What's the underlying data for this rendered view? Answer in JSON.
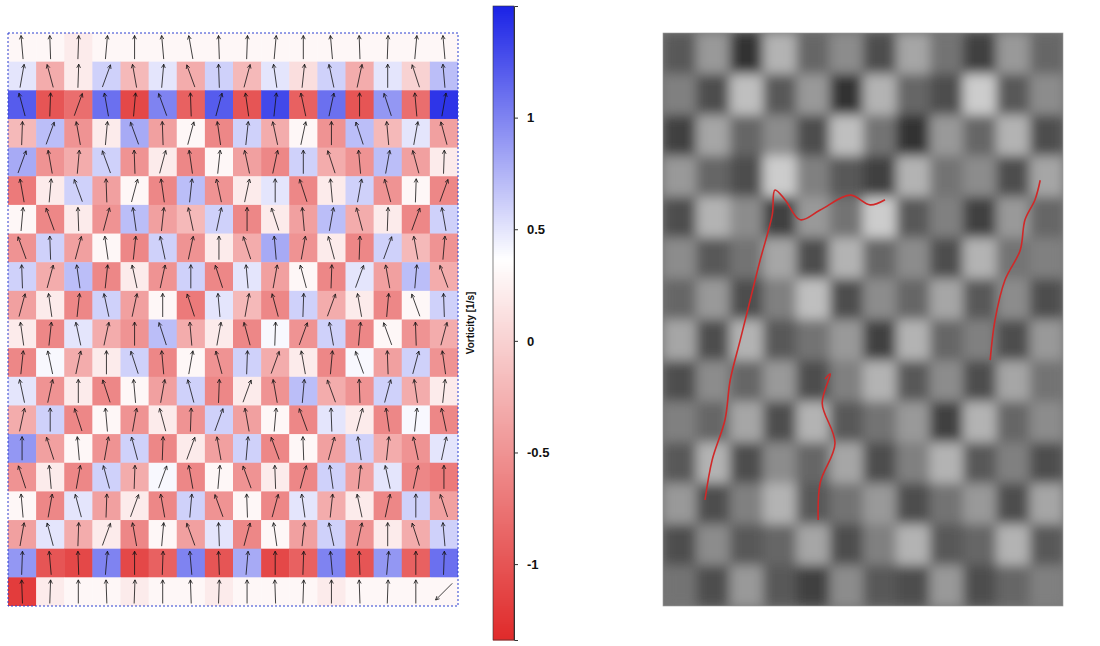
{
  "chart_data": [
    {
      "type": "heatmap",
      "tick_labels": false,
      "grid": false,
      "cells": [
        [
          0.3,
          0.3,
          0.2,
          0.3,
          0.3,
          0.3,
          0.3,
          0.3,
          0.3,
          0.3,
          0.3,
          0.3,
          0.3,
          0.3,
          0.3,
          0.3
        ],
        [
          0.5,
          -0.3,
          0.2,
          0.6,
          -0.2,
          0.5,
          -0.3,
          0.6,
          -0.2,
          0.5,
          0.1,
          0.6,
          -0.3,
          0.5,
          0.0,
          0.7
        ],
        [
          1.2,
          -1.0,
          -0.8,
          1.1,
          -1.1,
          1.0,
          -0.9,
          1.2,
          -1.0,
          1.3,
          -0.9,
          1.1,
          -1.0,
          0.9,
          -0.8,
          1.4
        ],
        [
          -0.2,
          0.7,
          -0.5,
          0.2,
          0.8,
          -0.4,
          0.3,
          -0.6,
          0.6,
          -0.3,
          0.3,
          -0.5,
          0.7,
          -0.2,
          0.5,
          -0.4
        ],
        [
          0.8,
          -0.5,
          -0.3,
          0.6,
          -0.5,
          0.2,
          -0.6,
          0.3,
          -0.4,
          -0.6,
          0.6,
          -0.3,
          -0.5,
          0.7,
          -0.4,
          0.2
        ],
        [
          -0.7,
          0.2,
          0.6,
          -0.4,
          0.3,
          -0.6,
          0.7,
          -0.5,
          0.2,
          0.5,
          -0.6,
          0.2,
          0.6,
          -0.5,
          0.3,
          -0.6
        ],
        [
          0.3,
          -0.6,
          0.2,
          -0.5,
          0.7,
          -0.4,
          -0.2,
          0.6,
          -0.6,
          0.2,
          -0.4,
          0.7,
          -0.3,
          0.2,
          -0.6,
          0.6
        ],
        [
          -0.5,
          0.6,
          -0.4,
          0.3,
          -0.6,
          0.6,
          -0.5,
          0.2,
          -0.3,
          0.8,
          -0.5,
          0.2,
          -0.6,
          0.6,
          -0.2,
          -0.5
        ],
        [
          0.6,
          -0.3,
          0.7,
          -0.6,
          0.2,
          -0.5,
          0.6,
          -0.6,
          0.5,
          -0.4,
          0.3,
          -0.6,
          0.5,
          -0.4,
          0.7,
          -0.3
        ],
        [
          -0.4,
          0.2,
          -0.6,
          0.6,
          -0.4,
          0.3,
          -0.7,
          0.5,
          -0.2,
          -0.6,
          0.6,
          -0.3,
          0.2,
          -0.6,
          0.3,
          0.6
        ],
        [
          0.2,
          -0.6,
          0.5,
          -0.3,
          -0.5,
          0.7,
          -0.3,
          0.2,
          -0.6,
          0.4,
          -0.5,
          0.6,
          -0.6,
          0.3,
          -0.5,
          -0.3
        ],
        [
          -0.6,
          0.4,
          -0.3,
          0.2,
          0.6,
          -0.6,
          0.3,
          -0.5,
          0.6,
          -0.3,
          0.2,
          -0.6,
          0.4,
          -0.4,
          0.6,
          -0.5
        ],
        [
          0.5,
          -0.5,
          0.2,
          -0.6,
          0.3,
          -0.4,
          0.6,
          -0.6,
          0.2,
          -0.5,
          0.7,
          -0.3,
          -0.5,
          0.6,
          -0.3,
          0.2
        ],
        [
          -0.3,
          0.6,
          -0.6,
          0.3,
          -0.5,
          0.2,
          -0.5,
          0.6,
          -0.4,
          0.3,
          -0.6,
          0.5,
          0.2,
          -0.6,
          0.4,
          -0.6
        ],
        [
          0.9,
          -0.4,
          0.3,
          -0.5,
          0.6,
          -0.6,
          0.2,
          -0.4,
          0.6,
          -0.6,
          0.3,
          -0.4,
          0.6,
          -0.3,
          -0.5,
          0.5
        ],
        [
          -0.5,
          0.2,
          -0.6,
          0.6,
          -0.3,
          0.4,
          -0.6,
          0.3,
          -0.5,
          0.2,
          -0.6,
          0.6,
          -0.4,
          0.5,
          -0.6,
          -0.7
        ],
        [
          0.3,
          -0.6,
          0.5,
          -0.4,
          0.2,
          -0.6,
          0.6,
          -0.5,
          0.3,
          -0.6,
          0.5,
          -0.3,
          0.2,
          -0.6,
          0.6,
          -0.4
        ],
        [
          -0.4,
          0.5,
          -0.3,
          0.2,
          -0.6,
          0.3,
          -0.4,
          0.5,
          -0.6,
          0.3,
          -0.4,
          0.6,
          -0.5,
          0.2,
          -0.3,
          0.6
        ],
        [
          0.9,
          -1.0,
          -1.1,
          1.0,
          -1.1,
          -0.9,
          1.0,
          -1.0,
          0.8,
          -1.1,
          -0.9,
          1.0,
          -1.0,
          0.9,
          -0.9,
          1.1
        ],
        [
          -1.2,
          0.2,
          0.3,
          0.3,
          0.2,
          0.3,
          0.3,
          0.2,
          0.3,
          0.3,
          0.3,
          0.2,
          0.3,
          0.3,
          0.3,
          0.3
        ]
      ],
      "velocity_angles": [
        [
          95,
          92,
          88,
          85,
          90,
          95,
          100,
          92,
          88,
          85,
          90,
          95,
          92,
          88,
          85,
          95
        ],
        [
          80,
          105,
          88,
          70,
          100,
          85,
          110,
          92,
          75,
          98,
          84,
          102,
          78,
          90,
          108,
          95
        ],
        [
          105,
          88,
          70,
          100,
          85,
          110,
          92,
          75,
          98,
          84,
          102,
          78,
          90,
          108,
          95,
          80
        ],
        [
          88,
          70,
          100,
          85,
          110,
          92,
          75,
          98,
          84,
          102,
          78,
          90,
          108,
          95,
          80,
          105
        ],
        [
          70,
          100,
          85,
          110,
          92,
          75,
          98,
          84,
          102,
          78,
          90,
          108,
          95,
          80,
          105,
          88
        ],
        [
          100,
          85,
          110,
          92,
          75,
          98,
          84,
          102,
          78,
          90,
          108,
          95,
          80,
          105,
          88,
          70
        ],
        [
          85,
          110,
          92,
          75,
          98,
          84,
          102,
          78,
          90,
          108,
          95,
          80,
          105,
          88,
          70,
          100
        ],
        [
          110,
          92,
          75,
          98,
          84,
          102,
          78,
          90,
          108,
          95,
          80,
          105,
          88,
          70,
          100,
          85
        ],
        [
          92,
          75,
          98,
          84,
          102,
          78,
          90,
          108,
          95,
          80,
          105,
          88,
          70,
          100,
          85,
          110
        ],
        [
          75,
          98,
          84,
          102,
          78,
          90,
          108,
          95,
          80,
          105,
          88,
          70,
          100,
          85,
          110,
          92
        ],
        [
          98,
          84,
          102,
          78,
          90,
          108,
          95,
          80,
          105,
          88,
          70,
          100,
          85,
          110,
          92,
          75
        ],
        [
          84,
          102,
          78,
          90,
          108,
          95,
          80,
          105,
          88,
          70,
          100,
          85,
          110,
          92,
          75,
          98
        ],
        [
          102,
          78,
          90,
          108,
          95,
          80,
          105,
          88,
          70,
          100,
          85,
          110,
          92,
          75,
          98,
          84
        ],
        [
          78,
          90,
          108,
          95,
          80,
          105,
          88,
          70,
          100,
          85,
          110,
          92,
          75,
          98,
          84,
          102
        ],
        [
          90,
          108,
          95,
          80,
          105,
          88,
          70,
          100,
          85,
          110,
          92,
          75,
          98,
          84,
          102,
          78
        ],
        [
          108,
          95,
          80,
          105,
          88,
          70,
          100,
          85,
          110,
          92,
          75,
          98,
          84,
          102,
          78,
          90
        ],
        [
          95,
          80,
          105,
          88,
          70,
          100,
          85,
          110,
          92,
          75,
          98,
          84,
          102,
          78,
          90,
          108
        ],
        [
          80,
          105,
          88,
          70,
          100,
          85,
          110,
          92,
          75,
          98,
          84,
          102,
          78,
          90,
          108,
          95
        ],
        [
          88,
          95,
          92,
          85,
          90,
          88,
          95,
          92,
          85,
          90,
          88,
          95,
          92,
          85,
          90,
          88
        ],
        [
          92,
          88,
          90,
          92,
          88,
          90,
          92,
          88,
          90,
          92,
          88,
          90,
          92,
          88,
          90,
          225
        ]
      ],
      "colorbar_range": [
        -1.34,
        1.5
      ],
      "colorbar_ticks": [
        1,
        0.5,
        0,
        -0.5,
        -1
      ],
      "colorbar_label": "Vorticity [1/s]"
    },
    {
      "type": "heatmap",
      "tick_labels": false,
      "grid": false,
      "xlim": [
        0,
        1
      ],
      "ylim": [
        1,
        0
      ],
      "color": "#d02828",
      "cells": [
        [
          0.35,
          0.6,
          0.2,
          0.7,
          0.4,
          0.55,
          0.3,
          0.65,
          0.45,
          0.25,
          0.6,
          0.4
        ],
        [
          0.5,
          0.3,
          0.75,
          0.35,
          0.6,
          0.2,
          0.7,
          0.4,
          0.3,
          0.8,
          0.35,
          0.55
        ],
        [
          0.25,
          0.65,
          0.4,
          0.55,
          0.3,
          0.75,
          0.45,
          0.2,
          0.6,
          0.4,
          0.7,
          0.3
        ],
        [
          0.6,
          0.4,
          0.3,
          0.8,
          0.5,
          0.35,
          0.25,
          0.7,
          0.45,
          0.55,
          0.3,
          0.65
        ],
        [
          0.3,
          0.7,
          0.55,
          0.25,
          0.6,
          0.45,
          0.8,
          0.35,
          0.5,
          0.25,
          0.6,
          0.4
        ],
        [
          0.55,
          0.35,
          0.45,
          0.65,
          0.3,
          0.7,
          0.4,
          0.55,
          0.3,
          0.7,
          0.45,
          0.5
        ],
        [
          0.4,
          0.6,
          0.3,
          0.5,
          0.75,
          0.3,
          0.55,
          0.4,
          0.65,
          0.35,
          0.55,
          0.3
        ],
        [
          0.65,
          0.3,
          0.7,
          0.35,
          0.45,
          0.6,
          0.25,
          0.7,
          0.4,
          0.5,
          0.3,
          0.6
        ],
        [
          0.3,
          0.55,
          0.4,
          0.6,
          0.3,
          0.5,
          0.7,
          0.35,
          0.55,
          0.3,
          0.65,
          0.45
        ],
        [
          0.5,
          0.4,
          0.65,
          0.3,
          0.7,
          0.35,
          0.45,
          0.6,
          0.25,
          0.7,
          0.4,
          0.55
        ],
        [
          0.35,
          0.7,
          0.3,
          0.55,
          0.4,
          0.65,
          0.3,
          0.5,
          0.7,
          0.35,
          0.5,
          0.3
        ],
        [
          0.6,
          0.3,
          0.5,
          0.7,
          0.35,
          0.45,
          0.6,
          0.3,
          0.45,
          0.6,
          0.3,
          0.65
        ],
        [
          0.3,
          0.55,
          0.35,
          0.4,
          0.65,
          0.3,
          0.5,
          0.7,
          0.35,
          0.4,
          0.7,
          0.35
        ],
        [
          0.45,
          0.3,
          0.6,
          0.35,
          0.25,
          0.55,
          0.35,
          0.3,
          0.6,
          0.3,
          0.4,
          0.5
        ]
      ],
      "series": [
        {
          "type": "line",
          "x": [
            0.555,
            0.518,
            0.468,
            0.393,
            0.343,
            0.305,
            0.28,
            0.273,
            0.243,
            0.218,
            0.193,
            0.168,
            0.155,
            0.123,
            0.105
          ],
          "y": [
            0.291,
            0.3,
            0.283,
            0.309,
            0.326,
            0.291,
            0.274,
            0.318,
            0.396,
            0.466,
            0.536,
            0.606,
            0.675,
            0.745,
            0.815
          ]
        },
        {
          "type": "line",
          "x": [
            0.405,
            0.418,
            0.398,
            0.43,
            0.393,
            0.388
          ],
          "y": [
            0.604,
            0.595,
            0.646,
            0.716,
            0.785,
            0.85
          ]
        },
        {
          "type": "line",
          "x": [
            0.818,
            0.83,
            0.855,
            0.893,
            0.905,
            0.93,
            0.943
          ],
          "y": [
            0.571,
            0.501,
            0.431,
            0.379,
            0.326,
            0.291,
            0.257
          ]
        }
      ]
    }
  ]
}
